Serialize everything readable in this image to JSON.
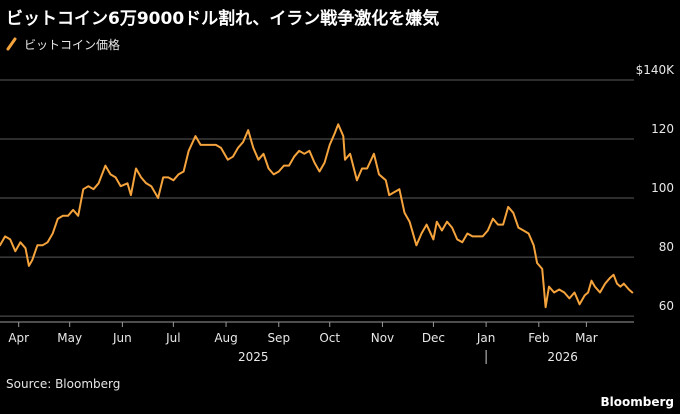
{
  "title": "ビットコイン6万9000ドル割れ、イラン戦争激化を嫌気",
  "source": "Source: Bloomberg",
  "brand": "Bloomberg",
  "colors": {
    "line": "#f5a33c",
    "background": "#000000",
    "grid": "#5a5a5a",
    "text": "#ffffff"
  },
  "chart_data": {
    "type": "line",
    "title": "ビットコイン6万9000ドル割れ、イラン戦争激化を嫌気",
    "xlabel": "",
    "ylabel": "",
    "ylim": [
      58,
      140
    ],
    "yticks": [
      {
        "value": 140,
        "label": "$140K"
      },
      {
        "value": 120,
        "label": "120"
      },
      {
        "value": 100,
        "label": "100"
      },
      {
        "value": 80,
        "label": "80"
      },
      {
        "value": 60,
        "label": "60"
      }
    ],
    "xlim": [
      "2025-03-21",
      "2026-03-29"
    ],
    "months": [
      {
        "date": "2025-04-01",
        "label": "Apr"
      },
      {
        "date": "2025-05-01",
        "label": "May"
      },
      {
        "date": "2025-06-01",
        "label": "Jun"
      },
      {
        "date": "2025-07-01",
        "label": "Jul"
      },
      {
        "date": "2025-08-01",
        "label": "Aug"
      },
      {
        "date": "2025-09-01",
        "label": "Sep"
      },
      {
        "date": "2025-10-01",
        "label": "Oct"
      },
      {
        "date": "2025-11-01",
        "label": "Nov"
      },
      {
        "date": "2025-12-01",
        "label": "Dec"
      },
      {
        "date": "2026-01-01",
        "label": "Jan"
      },
      {
        "date": "2026-02-01",
        "label": "Feb"
      },
      {
        "date": "2026-03-01",
        "label": "Mar"
      }
    ],
    "years": [
      {
        "date": "2025-08-17",
        "label": "2025"
      },
      {
        "date": "2026-02-15",
        "label": "2026"
      }
    ],
    "year_divider": "2026-01-01",
    "grid": true,
    "legend_position": "top-left",
    "series": [
      {
        "name": "ビットコイン価格",
        "color": "#f5a33c",
        "points": [
          [
            "2025-03-21",
            84
          ],
          [
            "2025-03-24",
            87
          ],
          [
            "2025-03-27",
            86
          ],
          [
            "2025-03-30",
            82
          ],
          [
            "2025-04-02",
            85
          ],
          [
            "2025-04-05",
            83
          ],
          [
            "2025-04-07",
            77
          ],
          [
            "2025-04-09",
            79
          ],
          [
            "2025-04-12",
            84
          ],
          [
            "2025-04-15",
            84
          ],
          [
            "2025-04-18",
            85
          ],
          [
            "2025-04-21",
            88
          ],
          [
            "2025-04-24",
            93
          ],
          [
            "2025-04-27",
            94
          ],
          [
            "2025-04-30",
            94
          ],
          [
            "2025-05-03",
            96
          ],
          [
            "2025-05-06",
            94
          ],
          [
            "2025-05-09",
            103
          ],
          [
            "2025-05-12",
            104
          ],
          [
            "2025-05-15",
            103
          ],
          [
            "2025-05-18",
            105
          ],
          [
            "2025-05-22",
            111
          ],
          [
            "2025-05-25",
            108
          ],
          [
            "2025-05-28",
            107
          ],
          [
            "2025-05-31",
            104
          ],
          [
            "2025-06-04",
            105
          ],
          [
            "2025-06-06",
            101
          ],
          [
            "2025-06-09",
            110
          ],
          [
            "2025-06-12",
            107
          ],
          [
            "2025-06-15",
            105
          ],
          [
            "2025-06-18",
            104
          ],
          [
            "2025-06-22",
            100
          ],
          [
            "2025-06-25",
            107
          ],
          [
            "2025-06-28",
            107
          ],
          [
            "2025-07-01",
            106
          ],
          [
            "2025-07-04",
            108
          ],
          [
            "2025-07-07",
            109
          ],
          [
            "2025-07-10",
            116
          ],
          [
            "2025-07-14",
            121
          ],
          [
            "2025-07-17",
            118
          ],
          [
            "2025-07-20",
            118
          ],
          [
            "2025-07-23",
            118
          ],
          [
            "2025-07-26",
            118
          ],
          [
            "2025-07-29",
            117
          ],
          [
            "2025-08-02",
            113
          ],
          [
            "2025-08-05",
            114
          ],
          [
            "2025-08-08",
            117
          ],
          [
            "2025-08-11",
            119
          ],
          [
            "2025-08-14",
            123
          ],
          [
            "2025-08-17",
            117
          ],
          [
            "2025-08-20",
            113
          ],
          [
            "2025-08-23",
            115
          ],
          [
            "2025-08-26",
            110
          ],
          [
            "2025-08-29",
            108
          ],
          [
            "2025-09-01",
            109
          ],
          [
            "2025-09-04",
            111
          ],
          [
            "2025-09-07",
            111
          ],
          [
            "2025-09-10",
            114
          ],
          [
            "2025-09-13",
            116
          ],
          [
            "2025-09-16",
            115
          ],
          [
            "2025-09-19",
            116
          ],
          [
            "2025-09-22",
            112
          ],
          [
            "2025-09-25",
            109
          ],
          [
            "2025-09-28",
            112
          ],
          [
            "2025-10-01",
            118
          ],
          [
            "2025-10-04",
            122
          ],
          [
            "2025-10-06",
            125
          ],
          [
            "2025-10-09",
            121
          ],
          [
            "2025-10-10",
            113
          ],
          [
            "2025-10-13",
            115
          ],
          [
            "2025-10-17",
            106
          ],
          [
            "2025-10-20",
            110
          ],
          [
            "2025-10-23",
            110
          ],
          [
            "2025-10-27",
            115
          ],
          [
            "2025-10-30",
            108
          ],
          [
            "2025-11-03",
            106
          ],
          [
            "2025-11-05",
            101
          ],
          [
            "2025-11-08",
            102
          ],
          [
            "2025-11-11",
            103
          ],
          [
            "2025-11-14",
            95
          ],
          [
            "2025-11-17",
            92
          ],
          [
            "2025-11-21",
            84
          ],
          [
            "2025-11-24",
            88
          ],
          [
            "2025-11-27",
            91
          ],
          [
            "2025-12-01",
            86
          ],
          [
            "2025-12-03",
            92
          ],
          [
            "2025-12-06",
            89
          ],
          [
            "2025-12-09",
            92
          ],
          [
            "2025-12-12",
            90
          ],
          [
            "2025-12-15",
            86
          ],
          [
            "2025-12-18",
            85
          ],
          [
            "2025-12-21",
            88
          ],
          [
            "2025-12-24",
            87
          ],
          [
            "2025-12-27",
            87
          ],
          [
            "2025-12-30",
            87
          ],
          [
            "2026-01-02",
            89
          ],
          [
            "2026-01-05",
            93
          ],
          [
            "2026-01-08",
            91
          ],
          [
            "2026-01-11",
            91
          ],
          [
            "2026-01-14",
            97
          ],
          [
            "2026-01-17",
            95
          ],
          [
            "2026-01-20",
            90
          ],
          [
            "2026-01-23",
            89
          ],
          [
            "2026-01-26",
            88
          ],
          [
            "2026-01-29",
            84
          ],
          [
            "2026-01-31",
            78
          ],
          [
            "2026-02-03",
            76
          ],
          [
            "2026-02-05",
            63
          ],
          [
            "2026-02-07",
            70
          ],
          [
            "2026-02-10",
            68
          ],
          [
            "2026-02-13",
            69
          ],
          [
            "2026-02-16",
            68
          ],
          [
            "2026-02-19",
            66
          ],
          [
            "2026-02-22",
            68
          ],
          [
            "2026-02-25",
            64
          ],
          [
            "2026-02-28",
            67
          ],
          [
            "2026-03-02",
            68
          ],
          [
            "2026-03-04",
            72
          ],
          [
            "2026-03-06",
            70
          ],
          [
            "2026-03-09",
            68
          ],
          [
            "2026-03-12",
            71
          ],
          [
            "2026-03-15",
            73
          ],
          [
            "2026-03-17",
            74
          ],
          [
            "2026-03-19",
            71
          ],
          [
            "2026-03-21",
            70
          ],
          [
            "2026-03-23",
            71
          ],
          [
            "2026-03-26",
            69
          ],
          [
            "2026-03-28",
            68
          ]
        ]
      }
    ]
  }
}
